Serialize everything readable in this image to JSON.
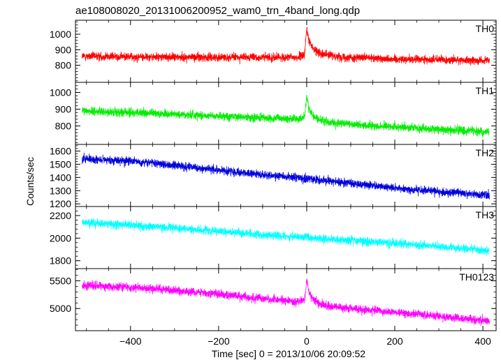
{
  "title": "ae108008020_20131006200952_wam0_trn_4band_long.qdp",
  "chart_data": {
    "type": "line",
    "title": "ae108008020_20131006200952_wam0_trn_4band_long.qdp",
    "xlabel": "Time [sec] 0 = 2013/10/06 20:09:52",
    "ylabel": "Counts/sec",
    "xlim": [
      -525,
      430
    ],
    "xticks": [
      -400,
      -200,
      0,
      200,
      400
    ],
    "grid": false,
    "panels": [
      {
        "name": "TH0",
        "color": "#ff0000",
        "ylim": [
          690,
          1090
        ],
        "yticks": [
          800,
          900,
          1000
        ],
        "series": [
          {
            "x": [
              -510,
              -400,
              -300,
              -200,
              -100,
              -20,
              -5,
              0,
              5,
              15,
              30,
              60,
              100,
              200,
              300,
              415
            ],
            "y": [
              858,
              855,
              852,
              852,
              850,
              850,
              870,
              1030,
              960,
              905,
              880,
              860,
              850,
              840,
              835,
              830
            ]
          }
        ]
      },
      {
        "name": "TH1",
        "color": "#00ee00",
        "ylim": [
          690,
          1060
        ],
        "yticks": [
          800,
          900,
          1000
        ],
        "series": [
          {
            "x": [
              -510,
              -400,
              -300,
              -200,
              -100,
              -20,
              -5,
              0,
              5,
              15,
              30,
              60,
              100,
              200,
              300,
              415
            ],
            "y": [
              890,
              880,
              870,
              860,
              848,
              840,
              850,
              980,
              900,
              855,
              835,
              820,
              810,
              795,
              780,
              765
            ]
          }
        ]
      },
      {
        "name": "TH2",
        "color": "#0000dd",
        "ylim": [
          1180,
          1650
        ],
        "yticks": [
          1200,
          1300,
          1400,
          1500,
          1600
        ],
        "series": [
          {
            "x": [
              -510,
              -400,
              -300,
              -200,
              -100,
              0,
              100,
              200,
              300,
              415
            ],
            "y": [
              1540,
              1525,
              1490,
              1455,
              1420,
              1390,
              1355,
              1320,
              1295,
              1265
            ]
          }
        ]
      },
      {
        "name": "TH3",
        "color": "#00ffff",
        "ylim": [
          1730,
          2280
        ],
        "yticks": [
          1800,
          2000,
          2200
        ],
        "series": [
          {
            "x": [
              -510,
              -400,
              -300,
              -200,
              -100,
              0,
              100,
              200,
              300,
              415
            ],
            "y": [
              2140,
              2115,
              2090,
              2060,
              2030,
              2005,
              1980,
              1955,
              1925,
              1890
            ]
          }
        ]
      },
      {
        "name": "TH0123",
        "color": "#ff00ff",
        "ylim": [
          4600,
          5720
        ],
        "yticks": [
          5000,
          5500
        ],
        "series": [
          {
            "x": [
              -510,
              -400,
              -300,
              -200,
              -100,
              -20,
              -5,
              0,
              5,
              15,
              30,
              60,
              100,
              200,
              300,
              415
            ],
            "y": [
              5420,
              5380,
              5330,
              5260,
              5180,
              5120,
              5150,
              5500,
              5300,
              5160,
              5080,
              5030,
              5000,
              4930,
              4860,
              4770
            ]
          }
        ]
      }
    ]
  }
}
